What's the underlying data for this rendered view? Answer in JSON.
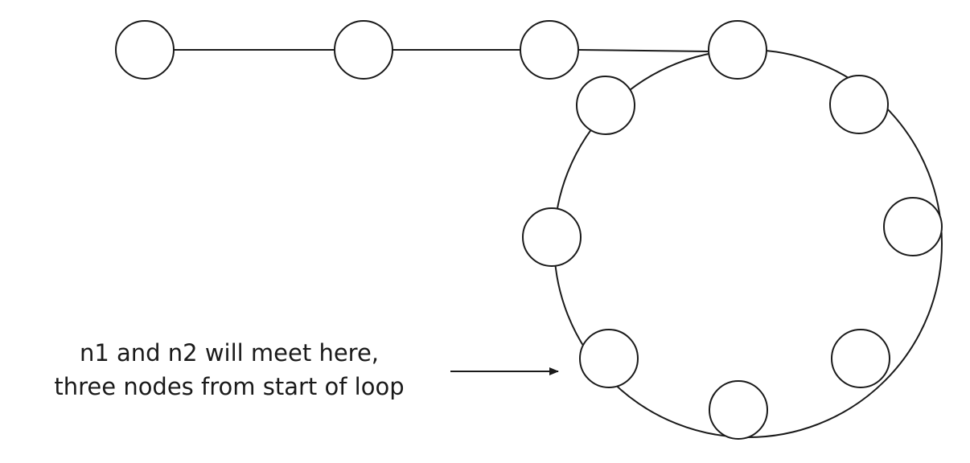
{
  "annotation": {
    "line1": "n1 and n2 will meet here,",
    "line2": "three nodes from start of loop"
  },
  "graph": {
    "tail_node_count": 3,
    "loop_node_count": 8,
    "meeting_node": "loop-node-7"
  }
}
